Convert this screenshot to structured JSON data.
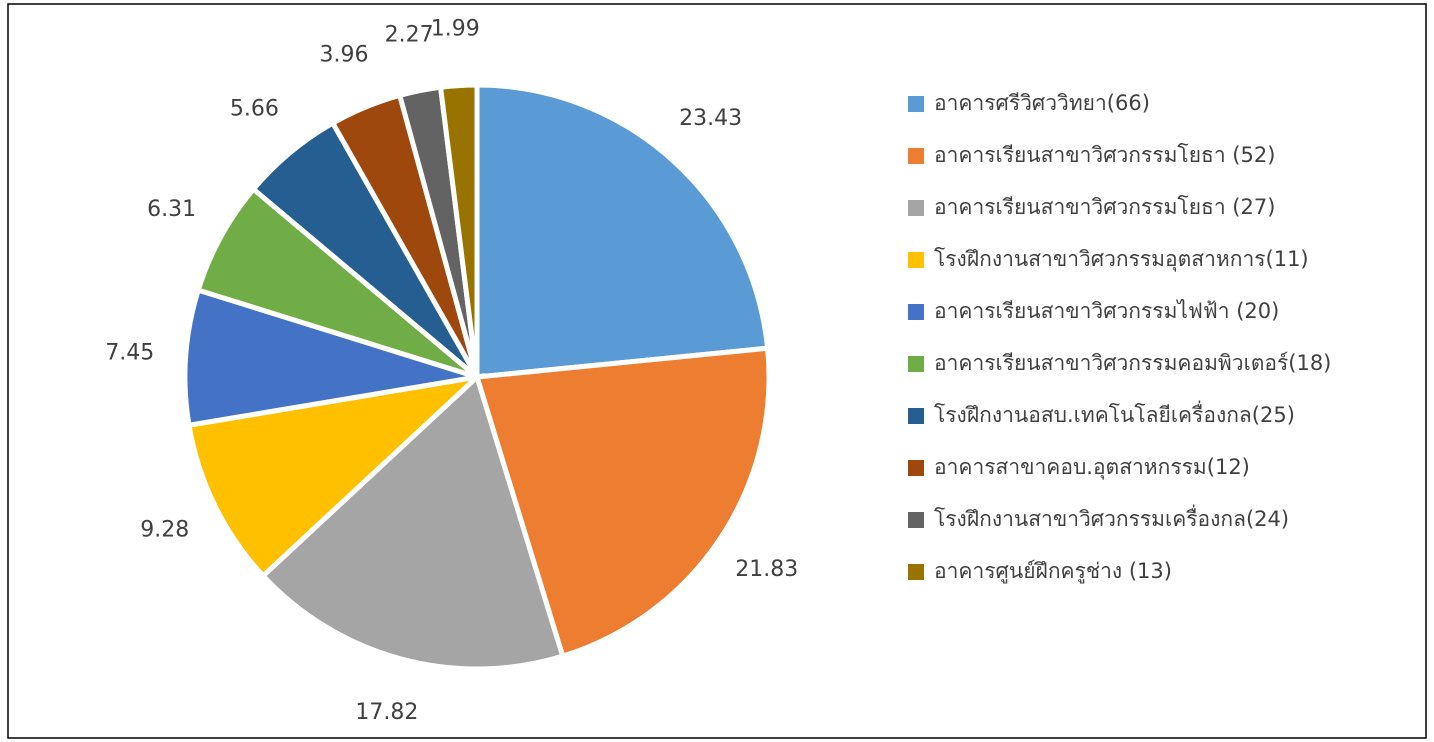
{
  "chart_data": {
    "type": "pie",
    "categories": [
      "อาคารศรีวิศววิทยา(66)",
      "อาคารเรียนสาขาวิศวกรรมโยธา (52)",
      "อาคารเรียนสาขาวิศวกรรมโยธา (27)",
      "โรงฝึกงานสาขาวิศวกรรมอุตสาหการ(11)",
      "อาคารเรียนสาขาวิศวกรรมไฟฟ้า (20)",
      "อาคารเรียนสาขาวิศวกรรมคอมพิวเตอร์(18)",
      "โรงฝึกงานอสบ.เทคโนโลยีเครื่องกล(25)",
      "อาคารสาขาคอบ.อุตสาหกรรม(12)",
      "โรงฝึกงานสาขาวิศวกรรมเครื่องกล(24)",
      "อาคารศูนย์ฝึกครูช่าง (13)"
    ],
    "values": [
      23.43,
      21.83,
      17.82,
      9.28,
      7.45,
      6.31,
      5.66,
      3.96,
      2.27,
      1.99
    ],
    "colors": [
      "#5b9bd5",
      "#ed7d31",
      "#a5a5a5",
      "#ffc000",
      "#4472c4",
      "#70ad47",
      "#255e91",
      "#9e480e",
      "#636363",
      "#997300"
    ],
    "legend": "right"
  }
}
